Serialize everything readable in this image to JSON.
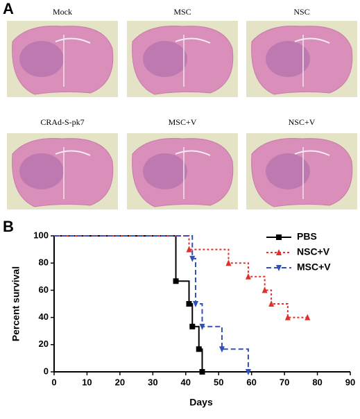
{
  "panel_a": {
    "label": "A",
    "images": [
      {
        "caption": "Mock"
      },
      {
        "caption": "MSC"
      },
      {
        "caption": "NSC"
      },
      {
        "caption": "CRAd-S-pk7"
      },
      {
        "caption": "MSC+V"
      },
      {
        "caption": "NSC+V"
      }
    ]
  },
  "chart_data": {
    "type": "step",
    "panel_label": "B",
    "xlabel": "Days",
    "ylabel": "Percent survival",
    "xlim": [
      0,
      90
    ],
    "xticks": [
      0,
      10,
      20,
      30,
      40,
      50,
      60,
      70,
      80,
      90
    ],
    "ylim": [
      0,
      100
    ],
    "yticks": [
      0,
      20,
      40,
      60,
      80,
      100
    ],
    "legend": "upper right",
    "series": [
      {
        "name": "PBS",
        "color": "#000000",
        "line_style": "solid",
        "marker": "square",
        "x": [
          0,
          37,
          41,
          42,
          44,
          45
        ],
        "values": [
          100,
          66.7,
          50,
          33.3,
          16.7,
          0
        ]
      },
      {
        "name": "NSC+V",
        "color": "#e0302a",
        "line_style": "dotted",
        "marker": "triangle-up",
        "x": [
          0,
          41,
          53,
          59,
          64,
          66,
          71,
          77
        ],
        "values": [
          100,
          90,
          80,
          70,
          60,
          50,
          40,
          40
        ]
      },
      {
        "name": "MSC+V",
        "color": "#3050b8",
        "line_style": "dashed",
        "marker": "triangle-down",
        "x": [
          0,
          42,
          43,
          45,
          51,
          59
        ],
        "values": [
          100,
          83.3,
          50,
          33.3,
          16.7,
          0
        ]
      }
    ]
  }
}
